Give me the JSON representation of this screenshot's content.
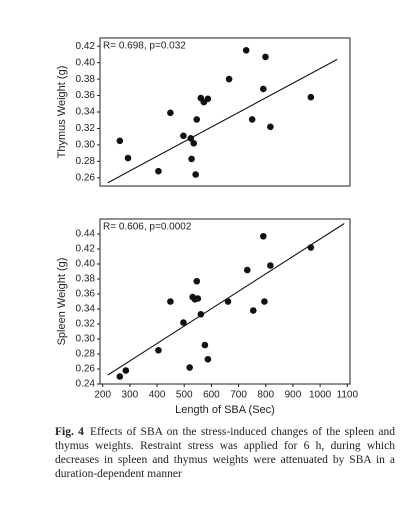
{
  "chart_data": [
    {
      "type": "scatter",
      "ylabel": "Thymus Weight (g)",
      "annotation": "R= 0.698,  p=0.032",
      "x": [
        263,
        293,
        405,
        449,
        497,
        524,
        535,
        527,
        542,
        546,
        561,
        572,
        587,
        665,
        728,
        750,
        791,
        799,
        817,
        966
      ],
      "values": [
        0.305,
        0.284,
        0.268,
        0.339,
        0.311,
        0.308,
        0.302,
        0.283,
        0.264,
        0.331,
        0.357,
        0.352,
        0.356,
        0.38,
        0.415,
        0.331,
        0.368,
        0.407,
        0.322,
        0.358
      ],
      "trendline": {
        "x": [
          219,
          1063
        ],
        "y": [
          0.254,
          0.404
        ]
      },
      "color": "#111111",
      "xlim": [
        190,
        1110
      ],
      "ylim": [
        0.25,
        0.43
      ],
      "yticks": [
        0.26,
        0.28,
        {
          "value": 0.3,
          "label": "0.30"
        },
        0.32,
        0.34,
        0.36,
        0.38,
        {
          "value": 0.4,
          "label": "0.40"
        },
        0.42
      ]
    },
    {
      "type": "scatter",
      "ylabel": "Spleen Weight (g)",
      "xlabel": "Length of SBA (Sec)",
      "annotation": "R= 0.606,  p=0.0002",
      "x": [
        263,
        285,
        405,
        449,
        497,
        520,
        531,
        539,
        546,
        550,
        561,
        576,
        587,
        661,
        732,
        754,
        791,
        795,
        817,
        966
      ],
      "values": [
        0.25,
        0.258,
        0.285,
        0.35,
        0.322,
        0.262,
        0.356,
        0.353,
        0.377,
        0.354,
        0.333,
        0.292,
        0.273,
        0.35,
        0.392,
        0.338,
        0.437,
        0.35,
        0.398,
        0.422
      ],
      "trendline": {
        "x": [
          219,
          1089
        ],
        "y": [
          0.252,
          0.454
        ]
      },
      "color": "#111111",
      "xlim": [
        190,
        1110
      ],
      "ylim": [
        0.24,
        0.46
      ],
      "xticks": [
        200,
        300,
        400,
        500,
        600,
        700,
        800,
        900,
        1000,
        1100
      ],
      "yticks": [
        0.24,
        0.26,
        0.28,
        {
          "value": 0.3,
          "label": "0.30"
        },
        0.32,
        0.34,
        0.36,
        0.38,
        {
          "value": 0.4,
          "label": "0.40"
        },
        0.42,
        0.44
      ]
    }
  ],
  "caption": {
    "label": "Fig. 4",
    "text": "Effects of SBA on the stress-induced changes of the spleen and thymus weights. Restraint stress was applied for 6 h, during which decreases in spleen and thymus weights were attenuated by SBA in a duration-dependent manner"
  }
}
